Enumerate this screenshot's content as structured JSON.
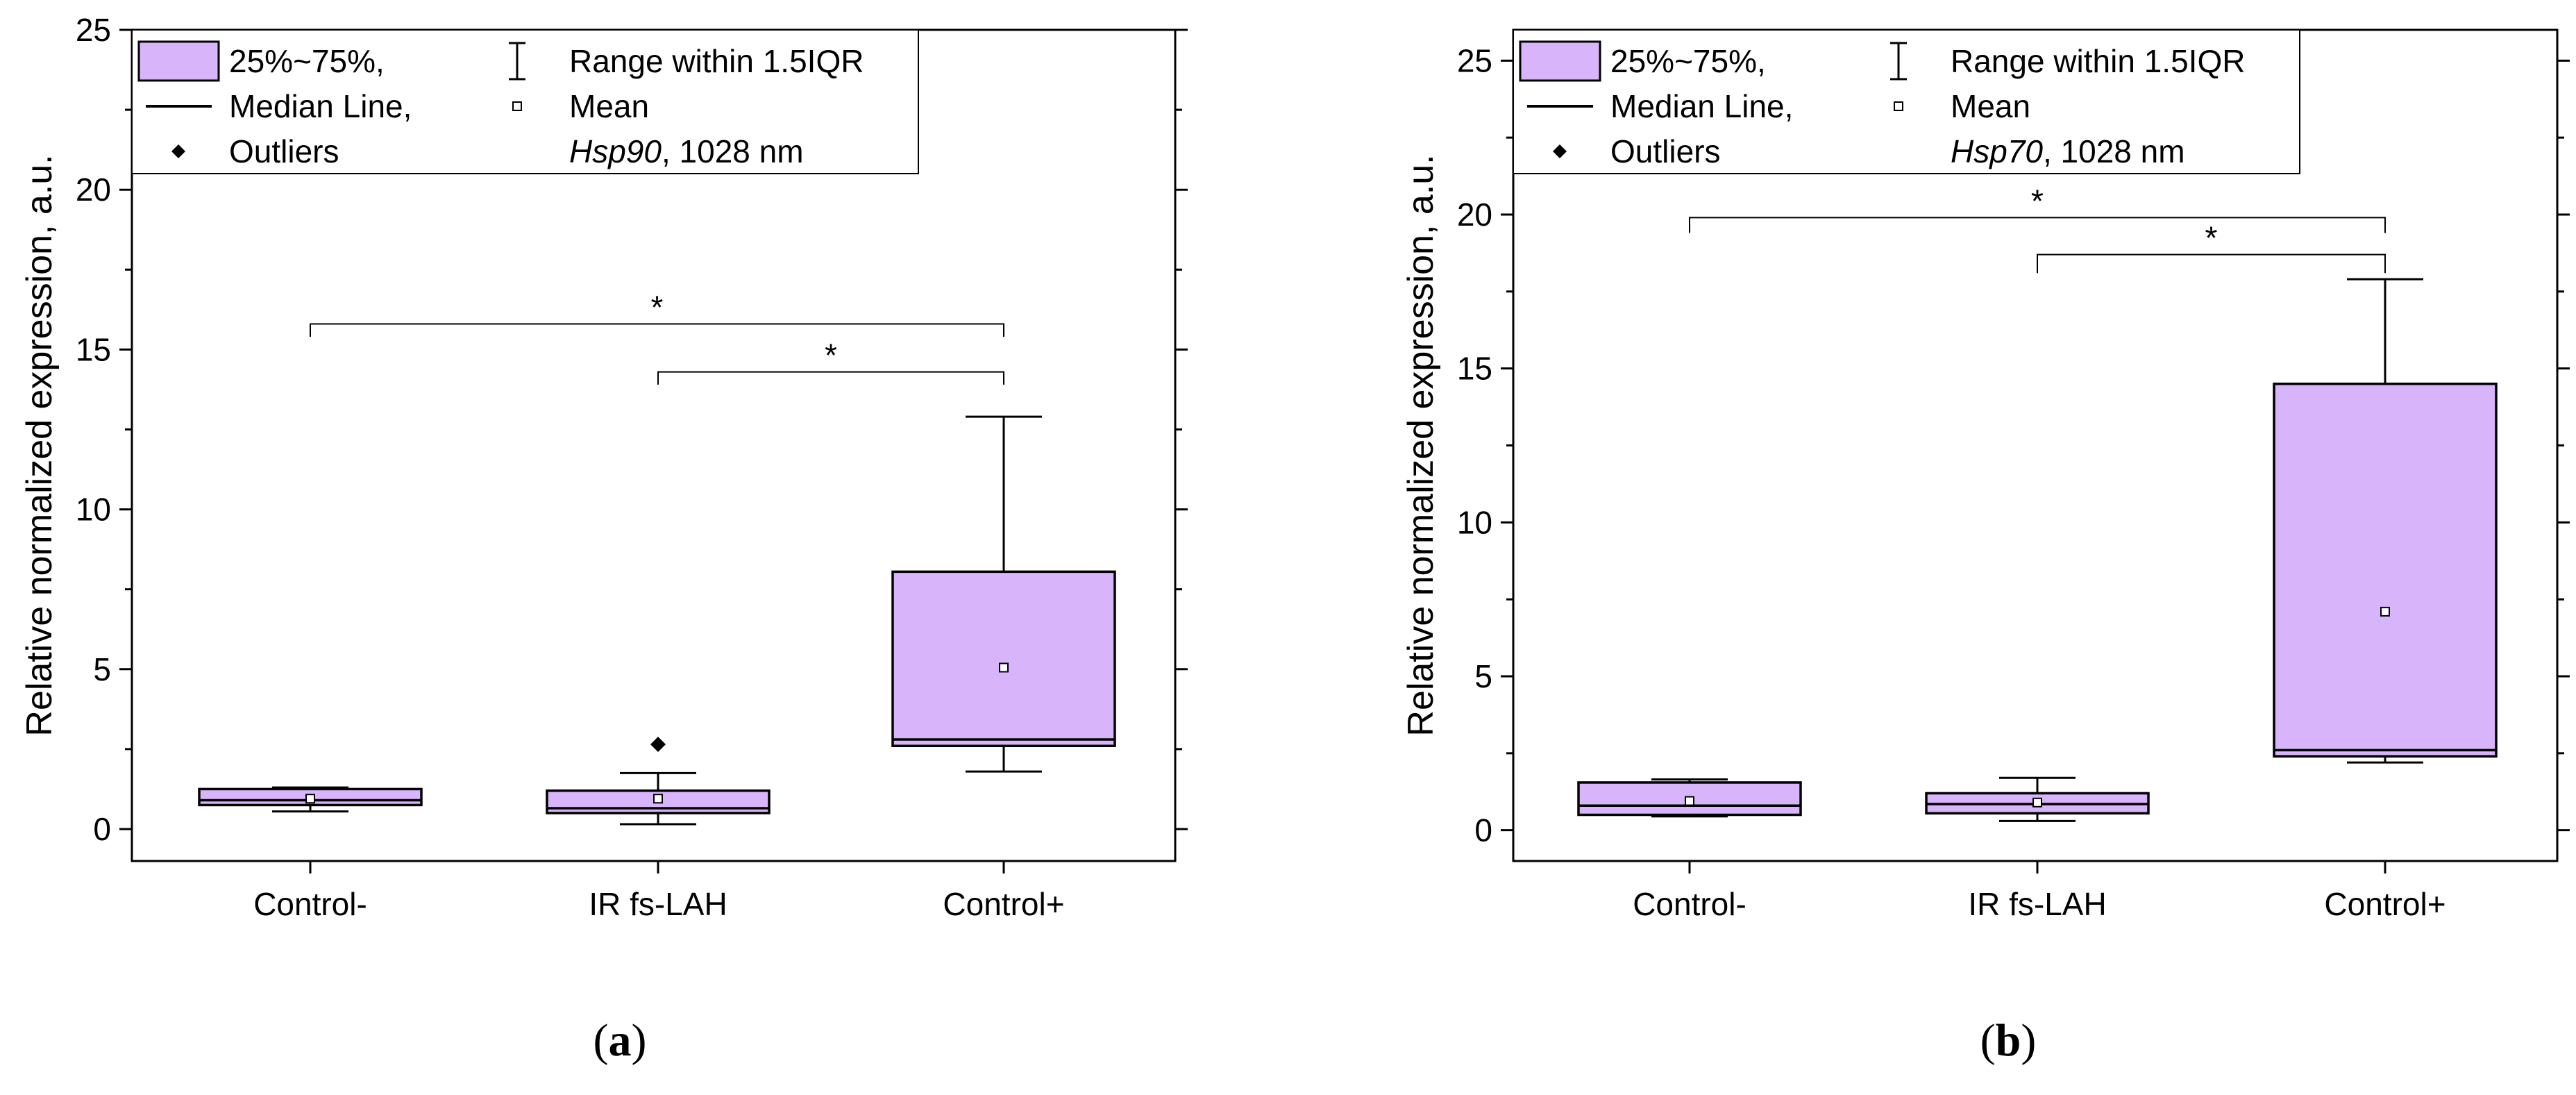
{
  "chart_data": [
    {
      "panel": "a",
      "panel_label_open": "(",
      "panel_label_letter": "a",
      "panel_label_close": ")",
      "type": "box",
      "ylabel": "Relative normalized expression, a.u.",
      "ylim": [
        -1,
        25
      ],
      "yticks": [
        "0",
        "5",
        "10",
        "15",
        "20",
        "25"
      ],
      "ytick_values": [
        0,
        5,
        10,
        15,
        20,
        25
      ],
      "categories": [
        "Control-",
        "IR fs-LAH",
        "Control+"
      ],
      "boxes": [
        {
          "q1": 0.75,
          "median": 0.9,
          "q3": 1.25,
          "whisker_low": 0.55,
          "whisker_high": 1.3,
          "mean": 0.95,
          "outliers": []
        },
        {
          "q1": 0.5,
          "median": 0.65,
          "q3": 1.2,
          "whisker_low": 0.15,
          "whisker_high": 1.75,
          "mean": 0.95,
          "outliers": [
            2.65
          ]
        },
        {
          "q1": 2.6,
          "median": 2.8,
          "q3": 8.05,
          "whisker_low": 1.8,
          "whisker_high": 12.9,
          "mean": 5.05,
          "outliers": []
        }
      ],
      "significance": [
        {
          "from": 0,
          "to": 2,
          "y": 15.8,
          "drop": 15.4,
          "label": "*"
        },
        {
          "from": 1,
          "to": 2,
          "y": 14.3,
          "drop": 13.9,
          "label": "*"
        }
      ],
      "legend": {
        "box_label": "25%~75%,",
        "median_label": "Median Line,",
        "outliers_label": "Outliers",
        "range_label": "Range within 1.5IQR",
        "mean_label": "Mean",
        "gene": "Hsp90",
        "gene_suffix": ", 1028 nm"
      }
    },
    {
      "panel": "b",
      "panel_label_open": "(",
      "panel_label_letter": "b",
      "panel_label_close": ")",
      "type": "box",
      "ylabel": "Relative normalized expression, a.u.",
      "ylim": [
        -1,
        26
      ],
      "yticks": [
        "0",
        "5",
        "10",
        "15",
        "20",
        "25"
      ],
      "ytick_values": [
        0,
        5,
        10,
        15,
        20,
        25
      ],
      "categories": [
        "Control-",
        "IR fs-LAH",
        "Control+"
      ],
      "boxes": [
        {
          "q1": 0.5,
          "median": 0.8,
          "q3": 1.55,
          "whisker_low": 0.45,
          "whisker_high": 1.65,
          "mean": 0.95,
          "outliers": []
        },
        {
          "q1": 0.55,
          "median": 0.85,
          "q3": 1.2,
          "whisker_low": 0.3,
          "whisker_high": 1.7,
          "mean": 0.9,
          "outliers": []
        },
        {
          "q1": 2.4,
          "median": 2.6,
          "q3": 14.5,
          "whisker_low": 2.2,
          "whisker_high": 17.9,
          "mean": 7.1,
          "outliers": []
        }
      ],
      "significance": [
        {
          "from": 0,
          "to": 2,
          "y": 19.9,
          "drop": 19.4,
          "label": "*"
        },
        {
          "from": 1,
          "to": 2,
          "y": 18.7,
          "drop": 18.1,
          "label": "*"
        }
      ],
      "legend": {
        "box_label": "25%~75%,",
        "median_label": "Median Line,",
        "outliers_label": "Outliers",
        "range_label": "Range within 1.5IQR",
        "mean_label": "Mean",
        "gene": "Hsp70",
        "gene_suffix": ", 1028 nm"
      }
    }
  ],
  "colors": {
    "box_fill": "#d8b5fb",
    "stroke": "#000000"
  }
}
